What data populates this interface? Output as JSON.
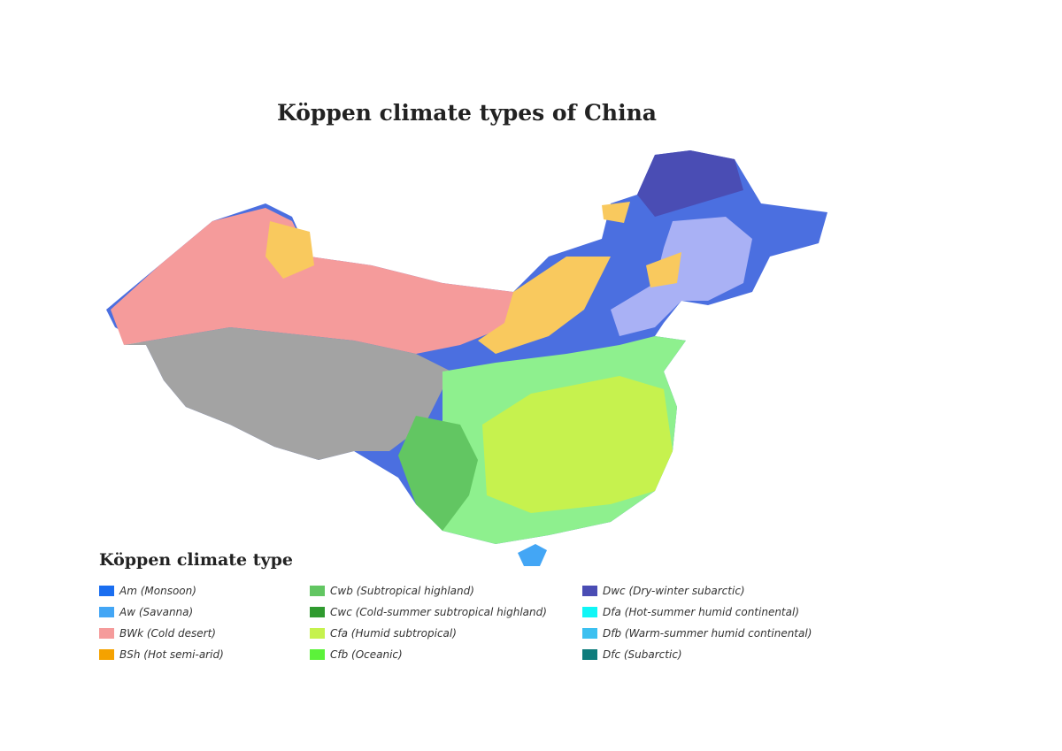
{
  "title": "Köppen climate types of China",
  "legend": {
    "title": "Köppen climate type",
    "columns": [
      [
        {
          "label": "Am (Monsoon)",
          "color": "#1a6ef0"
        },
        {
          "label": "Aw (Savanna)",
          "color": "#43a6f5"
        },
        {
          "label": "BWk (Cold desert)",
          "color": "#f59b9b"
        },
        {
          "label": "BSh (Hot semi-arid)",
          "color": "#f5a200"
        }
      ],
      [
        {
          "label": "Cwb (Subtropical highland)",
          "color": "#62c662"
        },
        {
          "label": "Cwc (Cold-summer subtropical highland)",
          "color": "#2f9a2f"
        },
        {
          "label": "Cfa (Humid subtropical)",
          "color": "#c6f24e"
        },
        {
          "label": "Cfb (Oceanic)",
          "color": "#5cf23a"
        }
      ],
      [
        {
          "label": "Dwc (Dry-winter subarctic)",
          "color": "#4a4db4"
        },
        {
          "label": "Dfa (Hot-summer humid continental)",
          "color": "#10f6f6"
        },
        {
          "label": "Dfb (Warm-summer humid continental)",
          "color": "#3cc0f0"
        },
        {
          "label": "Dfc (Subarctic)",
          "color": "#0e7c7c"
        }
      ]
    ]
  },
  "map_colors": {
    "tundra": "#a3a3a3",
    "cold_desert": "#f59b9b",
    "semi_arid": "#f9c95e",
    "dwa": "#a9b1f5",
    "dwb": "#4b6fe0",
    "dwc": "#4a4db4",
    "cwa": "#8ef08e",
    "cfa": "#c6f24e",
    "cwb": "#62c662",
    "hainan": "#43a6f5"
  }
}
